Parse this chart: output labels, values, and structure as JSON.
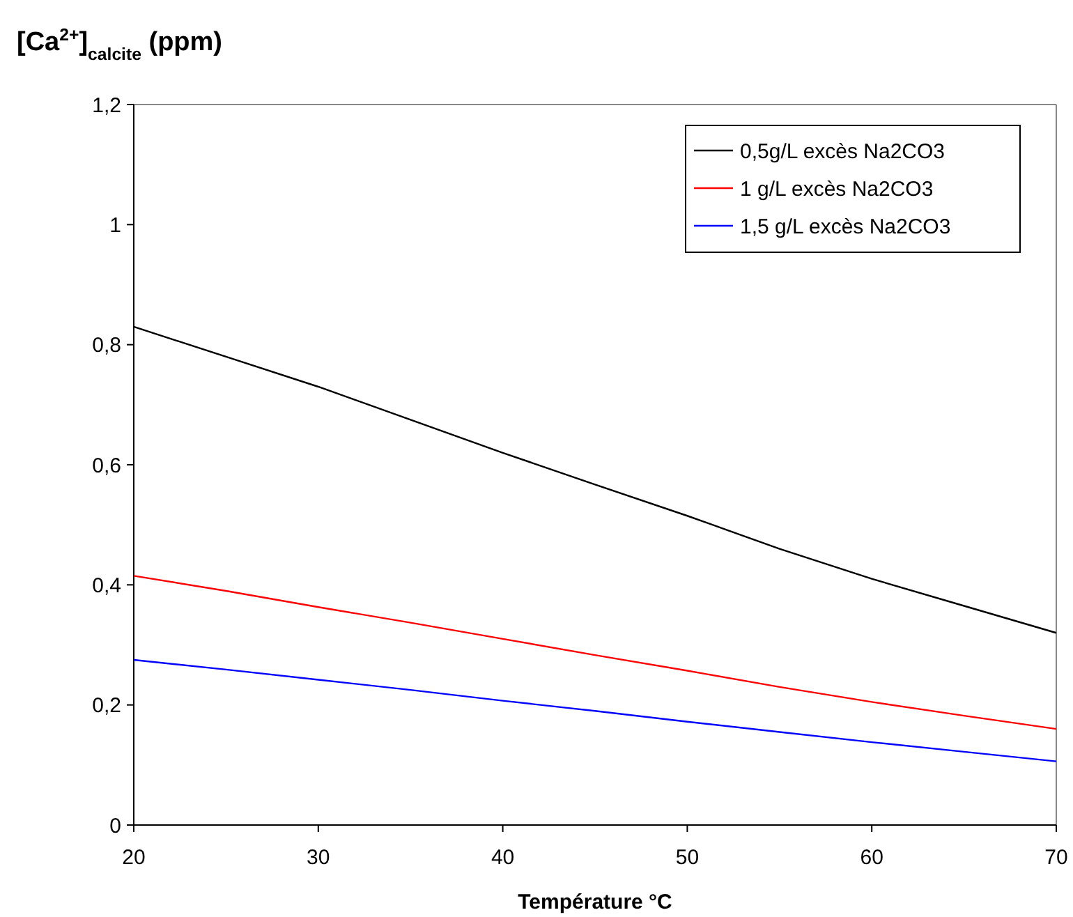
{
  "chart_data": {
    "type": "line",
    "ylabel": "[Ca$^{2+}$]$_{calcite}$ (ppm)",
    "xlabel": "Température °C",
    "x": [
      20,
      25,
      30,
      35,
      40,
      45,
      50,
      55,
      60,
      65,
      70
    ],
    "series": [
      {
        "name": "0,5g/L excès Na2CO3",
        "color": "#000000",
        "values": [
          0.83,
          0.78,
          0.73,
          0.675,
          0.62,
          0.567,
          0.515,
          0.46,
          0.41,
          0.365,
          0.32
        ]
      },
      {
        "name": "1 g/L excès Na2CO3",
        "color": "#ff0000",
        "values": [
          0.415,
          0.39,
          0.363,
          0.337,
          0.31,
          0.283,
          0.257,
          0.23,
          0.205,
          0.182,
          0.16
        ]
      },
      {
        "name": "1,5 g/L excès Na2CO3",
        "color": "#0000ff",
        "values": [
          0.275,
          0.259,
          0.242,
          0.225,
          0.207,
          0.19,
          0.172,
          0.155,
          0.138,
          0.122,
          0.106
        ]
      }
    ],
    "xlim": [
      20,
      70
    ],
    "xticks": [
      20,
      30,
      40,
      50,
      60,
      70
    ],
    "ylim": [
      0,
      1.2
    ],
    "yticks": [
      0,
      {
        "value": 0.2,
        "label": "0,2"
      },
      {
        "value": 0.4,
        "label": "0,4"
      },
      {
        "value": 0.6,
        "label": "0,6"
      },
      {
        "value": 0.8,
        "label": "0,8"
      },
      1,
      {
        "value": 1.2,
        "label": "1,2"
      }
    ],
    "legend": "top right",
    "grid": false,
    "line_style": "solid"
  }
}
